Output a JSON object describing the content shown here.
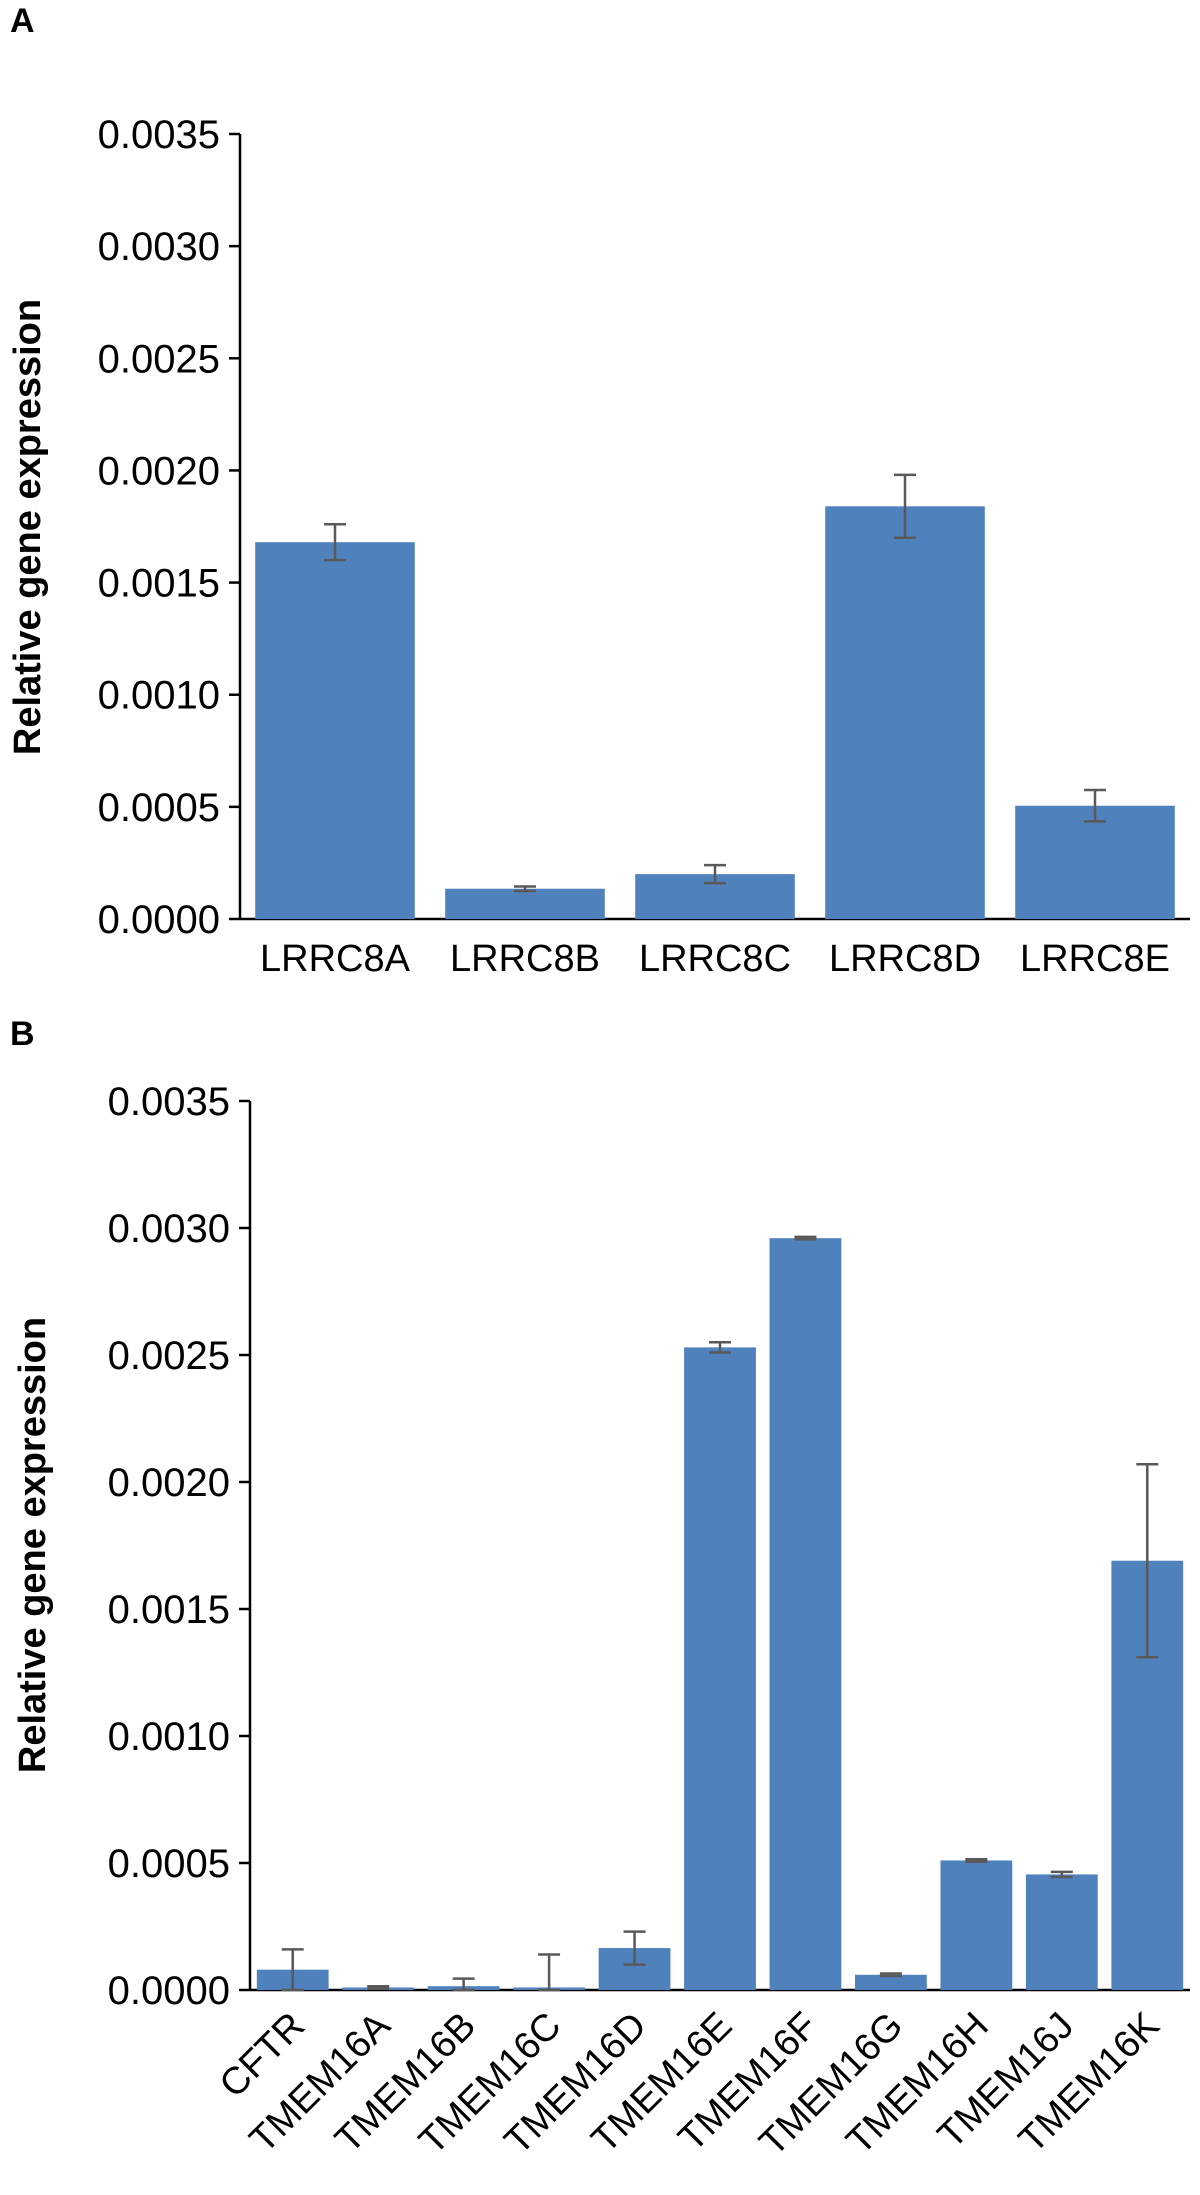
{
  "chart_data": [
    {
      "type": "bar",
      "panel_label": "A",
      "ylabel": "Relative gene expression",
      "xlabel": "",
      "ylim": [
        0,
        0.0035
      ],
      "yticks": [
        "0.0000",
        "0.0005",
        "0.0010",
        "0.0015",
        "0.0020",
        "0.0025",
        "0.0030",
        "0.0035"
      ],
      "categories": [
        "LRRC8A",
        "LRRC8B",
        "LRRC8C",
        "LRRC8D",
        "LRRC8E"
      ],
      "values": [
        0.00168,
        0.000135,
        0.0002,
        0.00184,
        0.000505
      ],
      "errors": [
        8e-05,
        1e-05,
        4e-05,
        0.00014,
        7e-05
      ],
      "bar_color": "#4f81bd",
      "error_color": "#595959",
      "grid": false
    },
    {
      "type": "bar",
      "panel_label": "B",
      "ylabel": "Relative gene expression",
      "xlabel": "",
      "ylim": [
        0,
        0.0035
      ],
      "yticks": [
        "0.0000",
        "0.0005",
        "0.0010",
        "0.0015",
        "0.0020",
        "0.0025",
        "0.0030",
        "0.0035"
      ],
      "categories": [
        "CFTR",
        "TMEM16A",
        "TMEM16B",
        "TMEM16C",
        "TMEM16D",
        "TMEM16E",
        "TMEM16F",
        "TMEM16G",
        "TMEM16H",
        "TMEM16J",
        "TMEM16K"
      ],
      "values": [
        8e-05,
        1e-05,
        1.5e-05,
        1e-05,
        0.000165,
        0.00253,
        0.00296,
        6e-05,
        0.00051,
        0.000455,
        0.00169
      ],
      "errors": [
        8e-05,
        5e-06,
        3e-05,
        0.00013,
        6.5e-05,
        2e-05,
        5e-06,
        5e-06,
        5e-06,
        1e-05,
        0.00038
      ],
      "bar_color": "#4f81bd",
      "error_color": "#595959",
      "grid": false
    }
  ]
}
